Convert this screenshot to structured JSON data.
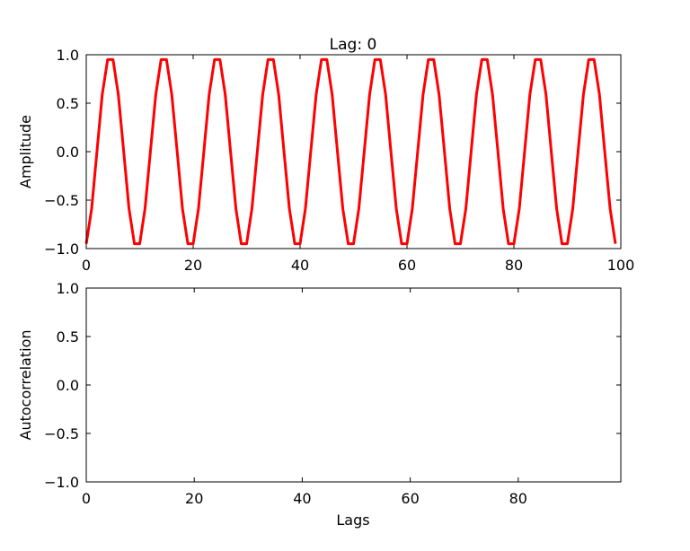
{
  "chart_data": [
    {
      "type": "line",
      "title": "Lag: 0",
      "xlabel": "",
      "ylabel": "Amplitude",
      "xlim": [
        0,
        100
      ],
      "ylim": [
        -1.0,
        1.0
      ],
      "xticks": [
        "0",
        "20",
        "40",
        "60",
        "80",
        "100"
      ],
      "yticks": [
        "1.0",
        "0.5",
        "0.0",
        "−0.5",
        "−1.0"
      ],
      "grid": false,
      "line_color": "#ff0000",
      "x_start": 0,
      "values": [
        -0.95,
        -0.59,
        0,
        0.59,
        0.95,
        0.95,
        0.59,
        0,
        -0.59,
        -0.95,
        -0.95,
        -0.59,
        0,
        0.59,
        0.95,
        0.95,
        0.59,
        0,
        -0.59,
        -0.95,
        -0.95,
        -0.59,
        0,
        0.59,
        0.95,
        0.95,
        0.59,
        0,
        -0.59,
        -0.95,
        -0.95,
        -0.59,
        0,
        0.59,
        0.95,
        0.95,
        0.59,
        0,
        -0.59,
        -0.95,
        -0.95,
        -0.59,
        0,
        0.59,
        0.95,
        0.95,
        0.59,
        0,
        -0.59,
        -0.95,
        -0.95,
        -0.59,
        0,
        0.59,
        0.95,
        0.95,
        0.59,
        0,
        -0.59,
        -0.95,
        -0.95,
        -0.59,
        0,
        0.59,
        0.95,
        0.95,
        0.59,
        0,
        -0.59,
        -0.95,
        -0.95,
        -0.59,
        0,
        0.59,
        0.95,
        0.95,
        0.59,
        0,
        -0.59,
        -0.95,
        -0.95,
        -0.59,
        0,
        0.59,
        0.95,
        0.95,
        0.59,
        0,
        -0.59,
        -0.95,
        -0.95,
        -0.59,
        0,
        0.59,
        0.95,
        0.95,
        0.59,
        0,
        -0.59,
        -0.95
      ]
    },
    {
      "type": "bar",
      "title": "",
      "xlabel": "Lags",
      "ylabel": "Autocorrelation",
      "xlim": [
        0,
        99
      ],
      "ylim": [
        -1.0,
        1.0
      ],
      "xticks": [
        "0",
        "20",
        "40",
        "60",
        "80"
      ],
      "yticks": [
        "1.0",
        "0.5",
        "0.0",
        "−0.5",
        "−1.0"
      ],
      "grid": false,
      "values": []
    }
  ]
}
